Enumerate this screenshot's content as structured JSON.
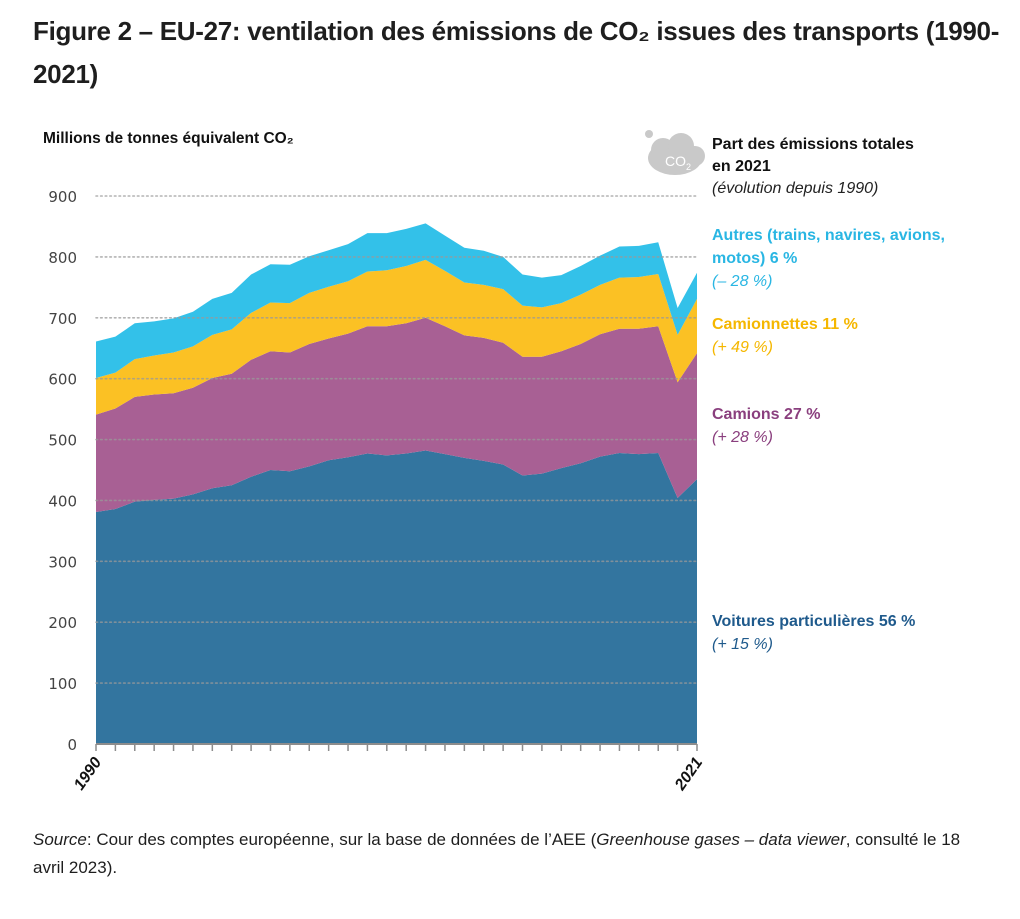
{
  "figure": {
    "title": "Figure 2 – EU-27: ventilation des émissions de CO₂ issues des transports (1990-2021)",
    "source_label": "Source",
    "source_text_1": ": Cour des comptes européenne, sur la base de données de l’AEE (",
    "source_italic_1": "Greenhouse gases – data viewer",
    "source_text_2": ", consulté le 18 avril 2023)."
  },
  "legend": {
    "header_line1": "Part des émissions totales",
    "header_line2": "en 2021",
    "header_sub": "(évolution depuis 1990)",
    "cloud_icon_label": "CO₂",
    "items": [
      {
        "name": "Autres (trains, navires, avions, motos) 6 %",
        "line1": "Autres (trains, navires, avions,",
        "line2": "motos) 6 %",
        "change": "(– 28 %)",
        "color": "#33c1e9"
      },
      {
        "name": "Camionnettes 11 %",
        "line1": "Camionnettes 11 %",
        "change": "(+ 49 %)",
        "color": "#fbc124"
      },
      {
        "name": "Camions 27 %",
        "line1": "Camions 27 %",
        "change": "(+ 28 %)",
        "color": "#a86094"
      },
      {
        "name": "Voitures particulières 56 %",
        "line1": "Voitures particulières 56 %",
        "change": "(+ 15 %)",
        "color": "#33759f"
      }
    ],
    "text_colors": {
      "autres": "#29b6e3",
      "camionnettes": "#f5b700",
      "camions": "#8a3f7e",
      "voitures": "#1f5a8c"
    }
  },
  "chart_data": {
    "type": "area",
    "stacked": true,
    "title": "Figure 2 – EU-27: ventilation des émissions de CO₂ issues des transports (1990-2021)",
    "ylabel": "Millions de tonnes équivalent CO₂",
    "xlabel": "",
    "ylim": [
      0,
      900
    ],
    "yticks": [
      0,
      100,
      200,
      300,
      400,
      500,
      600,
      700,
      800,
      900
    ],
    "xtick_labels": [
      "1990",
      "2021"
    ],
    "grid": "horizontal dotted",
    "legend_placement": "right",
    "x": [
      1990,
      1991,
      1992,
      1993,
      1994,
      1995,
      1996,
      1997,
      1998,
      1999,
      2000,
      2001,
      2002,
      2003,
      2004,
      2005,
      2006,
      2007,
      2008,
      2009,
      2010,
      2011,
      2012,
      2013,
      2014,
      2015,
      2016,
      2017,
      2018,
      2019,
      2020,
      2021
    ],
    "series": [
      {
        "name": "Voitures particulières",
        "color": "#33759f",
        "values": [
          381,
          386,
          398,
          401,
          403,
          410,
          420,
          425,
          439,
          450,
          448,
          456,
          466,
          471,
          477,
          474,
          477,
          482,
          476,
          470,
          465,
          459,
          441,
          444,
          453,
          461,
          472,
          478,
          476,
          478,
          404,
          435
        ]
      },
      {
        "name": "Camions",
        "color": "#a86094",
        "values": [
          160,
          165,
          172,
          173,
          173,
          175,
          181,
          183,
          192,
          195,
          195,
          201,
          200,
          203,
          209,
          212,
          214,
          218,
          210,
          201,
          202,
          200,
          195,
          192,
          192,
          196,
          201,
          204,
          206,
          208,
          190,
          207
        ]
      },
      {
        "name": "Camionnettes",
        "color": "#fbc124",
        "values": [
          60,
          59,
          62,
          64,
          67,
          68,
          71,
          73,
          77,
          80,
          81,
          84,
          85,
          86,
          90,
          92,
          94,
          95,
          91,
          87,
          87,
          88,
          84,
          81,
          79,
          81,
          81,
          84,
          85,
          86,
          78,
          89
        ]
      },
      {
        "name": "Autres (trains, navires, avions, motos)",
        "color": "#33c1e9",
        "values": [
          60,
          59,
          59,
          56,
          56,
          57,
          59,
          60,
          63,
          63,
          63,
          60,
          60,
          61,
          63,
          61,
          61,
          60,
          58,
          57,
          56,
          53,
          51,
          49,
          46,
          47,
          48,
          51,
          51,
          52,
          44,
          43
        ]
      }
    ]
  }
}
